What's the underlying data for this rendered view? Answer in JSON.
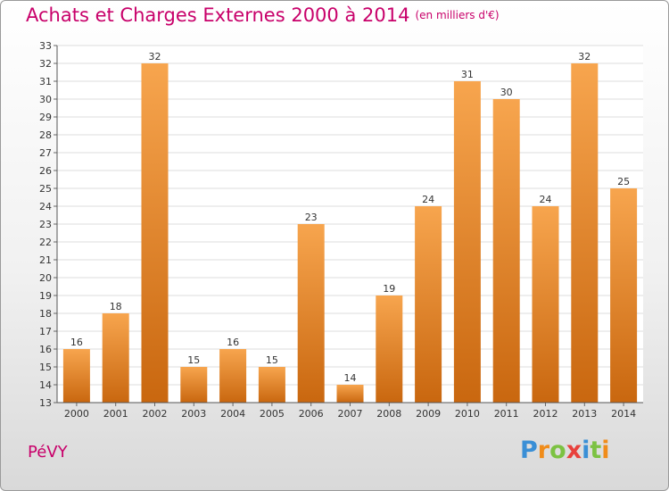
{
  "header": {
    "title": "Achats et Charges Externes 2000 à 2014",
    "unit": "(en milliers d'€)"
  },
  "footer": {
    "commune": "PéVY",
    "logo_letters": [
      "P",
      "r",
      "o",
      "x",
      "i",
      "t",
      "i"
    ],
    "logo_colors": [
      "#3a8fd6",
      "#f08c1a",
      "#7cc242",
      "#e8413c",
      "#3a8fd6",
      "#7cc242",
      "#f08c1a"
    ]
  },
  "colors": {
    "bar_light": "#f7a54e",
    "bar_dark": "#c9670f",
    "grid": "#dddddd",
    "text": "#333333"
  },
  "chart_data": {
    "type": "bar",
    "title": "Achats et Charges Externes 2000 à 2014",
    "categories": [
      "2000",
      "2001",
      "2002",
      "2003",
      "2004",
      "2005",
      "2006",
      "2007",
      "2008",
      "2009",
      "2010",
      "2011",
      "2012",
      "2013",
      "2014"
    ],
    "values": [
      16,
      18,
      32,
      15,
      16,
      15,
      23,
      14,
      19,
      24,
      31,
      30,
      24,
      32,
      25
    ],
    "ylim": [
      13,
      33
    ],
    "yticks": [
      13,
      14,
      15,
      16,
      17,
      18,
      19,
      20,
      21,
      22,
      23,
      24,
      25,
      26,
      27,
      28,
      29,
      30,
      31,
      32,
      33
    ],
    "grid": true,
    "xlabel": "",
    "ylabel": ""
  }
}
